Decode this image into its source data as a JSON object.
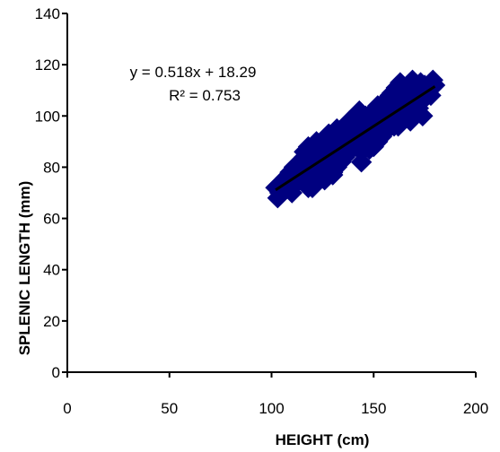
{
  "chart_data": {
    "type": "scatter",
    "xlabel": "HEIGHT (cm)",
    "ylabel": "SPLENIC LENGTH (mm)",
    "xlim": [
      0,
      200
    ],
    "ylim": [
      0,
      140
    ],
    "x_ticks": [
      0,
      50,
      100,
      150,
      200
    ],
    "y_ticks": [
      0,
      20,
      40,
      60,
      80,
      100,
      120,
      140
    ],
    "grid": false,
    "legend": "none",
    "marker": "diamond",
    "marker_color": "#000080",
    "trendline": {
      "slope": 0.518,
      "intercept": 18.29,
      "x_range": [
        102,
        180
      ],
      "color": "#000000"
    },
    "annotations": [
      "y = 0.518x  + 18.29",
      "R² = 0.753"
    ],
    "series": [
      {
        "x": [
          102,
          104,
          103,
          106,
          105,
          108,
          107,
          110,
          109,
          111,
          112,
          110,
          113,
          114,
          112,
          115,
          116,
          115,
          117,
          118,
          117,
          119,
          120,
          118,
          121,
          122,
          120,
          123,
          124,
          122,
          125,
          126,
          124,
          127,
          128,
          126,
          129,
          130,
          128,
          131,
          132,
          130,
          133,
          134,
          132,
          135,
          136,
          134,
          137,
          138,
          136,
          139,
          140,
          138,
          141,
          142,
          140,
          143,
          144,
          142,
          145,
          146,
          144,
          147,
          148,
          146,
          149,
          150,
          148,
          151,
          152,
          150,
          153,
          154,
          152,
          155,
          156,
          154,
          157,
          158,
          156,
          159,
          160,
          158,
          161,
          162,
          160,
          163,
          164,
          162,
          165,
          166,
          164,
          167,
          168,
          166,
          169,
          170,
          168,
          171,
          172,
          170,
          173,
          174,
          172,
          175,
          176,
          174,
          177,
          178,
          179,
          180,
          116,
          122,
          128,
          134,
          140,
          146,
          152,
          158,
          164,
          170,
          176,
          126,
          132,
          138,
          144,
          150,
          156,
          162,
          168,
          174,
          112,
          118,
          124,
          130,
          136,
          142,
          148,
          154,
          160,
          166,
          172,
          178
        ],
        "y": [
          72,
          70,
          68,
          74,
          71,
          73,
          76,
          72,
          78,
          80,
          75,
          70,
          77,
          82,
          74,
          79,
          84,
          76,
          81,
          86,
          78,
          83,
          74,
          88,
          85,
          80,
          72,
          87,
          82,
          76,
          89,
          84,
          78,
          91,
          86,
          80,
          88,
          82,
          93,
          90,
          84,
          78,
          92,
          86,
          95,
          94,
          88,
          82,
          96,
          90,
          84,
          98,
          92,
          86,
          100,
          94,
          88,
          102,
          96,
          90,
          97,
          92,
          86,
          99,
          94,
          89,
          101,
          96,
          91,
          103,
          98,
          93,
          100,
          95,
          90,
          105,
          100,
          95,
          107,
          102,
          97,
          109,
          104,
          99,
          111,
          106,
          101,
          113,
          108,
          103,
          110,
          105,
          100,
          112,
          107,
          102,
          114,
          109,
          104,
          111,
          106,
          101,
          113,
          108,
          103,
          112,
          110,
          106,
          111,
          108,
          114,
          112,
          86,
          90,
          84,
          92,
          96,
          100,
          104,
          108,
          112,
          104,
          110,
          75,
          80,
          98,
          82,
          88,
          94,
          96,
          98,
          100,
          79,
          72,
          83,
          77,
          85,
          89,
          87,
          92,
          96,
          106,
          108,
          113
        ]
      }
    ]
  }
}
